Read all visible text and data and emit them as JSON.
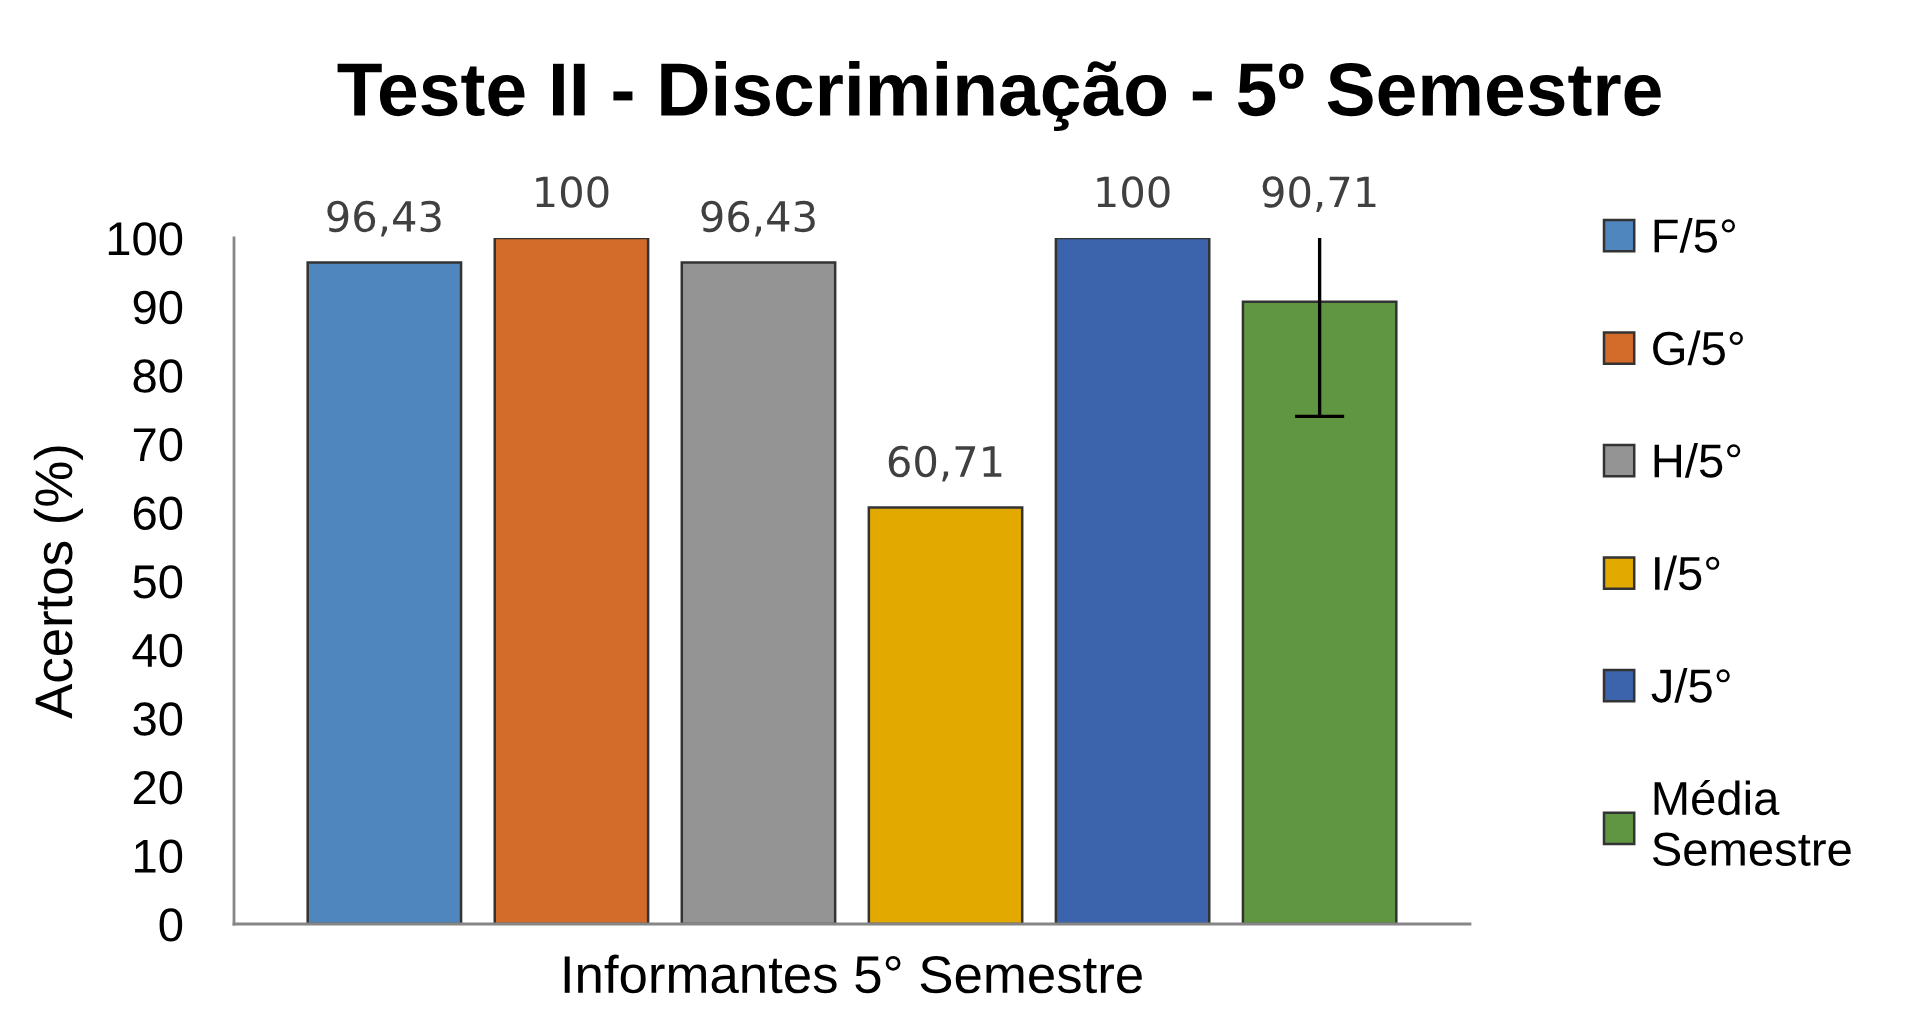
{
  "chart_data": {
    "type": "bar",
    "title": "Teste II - Discriminação - 5º Semestre",
    "ylabel": "Acertos (%)",
    "categories": [
      "Informantes 5° Semestre"
    ],
    "series": [
      {
        "name": "F/5°",
        "color": "#4f86bd",
        "values": [
          96.43
        ],
        "value_labels": [
          "96,43"
        ]
      },
      {
        "name": "G/5°",
        "color": "#d36b2b",
        "values": [
          100
        ],
        "value_labels": [
          "100"
        ]
      },
      {
        "name": "H/5°",
        "color": "#949494",
        "values": [
          96.43
        ],
        "value_labels": [
          "96,43"
        ]
      },
      {
        "name": "I/5°",
        "color": "#e2a900",
        "values": [
          60.71
        ],
        "value_labels": [
          "60,71"
        ]
      },
      {
        "name": "J/5°",
        "color": "#3b64ad",
        "values": [
          100
        ],
        "value_labels": [
          "100"
        ]
      },
      {
        "name": "Média Semestre",
        "color": "#609641",
        "values": [
          90.71
        ],
        "value_labels": [
          "90,71"
        ],
        "errors": [
          [
            74,
            100
          ]
        ]
      }
    ],
    "ylim": [
      0,
      100
    ],
    "yticks": [
      0,
      10,
      20,
      30,
      40,
      50,
      60,
      70,
      80,
      90,
      100
    ],
    "legend": "right"
  }
}
